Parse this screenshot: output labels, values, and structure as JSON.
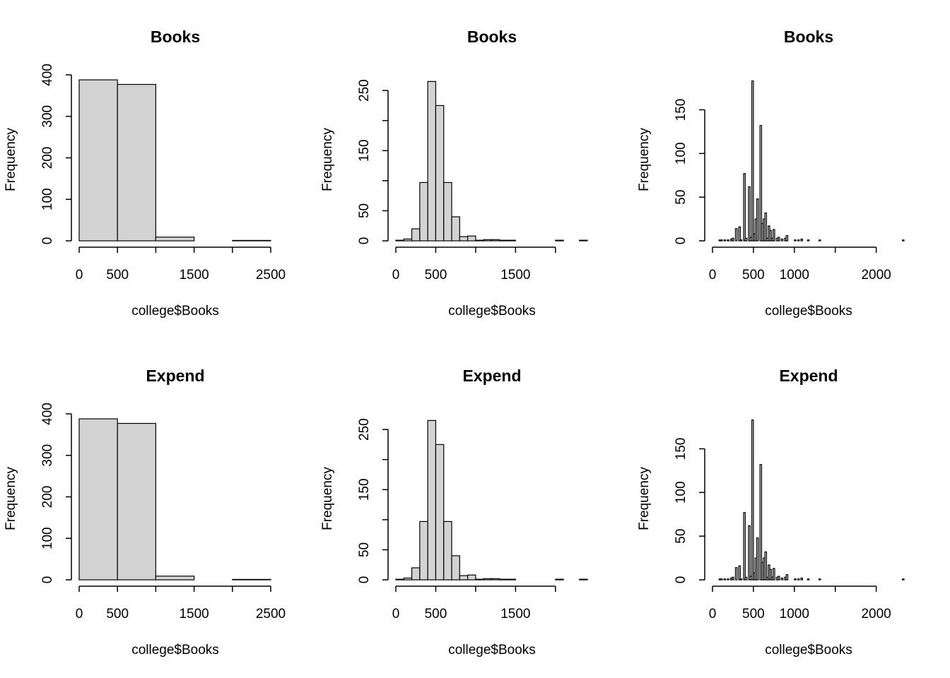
{
  "chart_data": [
    {
      "type": "histogram",
      "title": "Books",
      "x_label": "college$Books",
      "y_label": "Frequency",
      "color": "#d3d3d3",
      "bins": [
        0,
        500,
        1000,
        1500,
        2000,
        2500
      ],
      "values": [
        388,
        377,
        9,
        0,
        1
      ],
      "xlim": [
        0,
        2500
      ],
      "xticks": [
        0,
        500,
        {
          "value": 1000,
          "label": null
        },
        1500,
        {
          "value": 2000,
          "label": null
        },
        2500
      ],
      "ylim": [
        0,
        400
      ],
      "yticks": [
        0,
        100,
        200,
        300,
        400
      ]
    },
    {
      "type": "histogram",
      "title": "Books",
      "x_label": "college$Books",
      "y_label": "Frequency",
      "color": "#d3d3d3",
      "bins": [
        0,
        100,
        200,
        300,
        400,
        500,
        600,
        700,
        800,
        900,
        1000,
        1100,
        1200,
        1300,
        1400,
        1500,
        1600,
        1700,
        1800,
        1900,
        2000,
        2100,
        2200,
        2300,
        2400
      ],
      "values": [
        1,
        3,
        20,
        97,
        265,
        225,
        97,
        40,
        7,
        8,
        1,
        2,
        2,
        1,
        1,
        0,
        0,
        0,
        0,
        0,
        1,
        0,
        0,
        1
      ],
      "xlim": [
        0,
        2400
      ],
      "xticks": [
        0,
        500,
        {
          "value": 1000,
          "label": null
        },
        1500,
        {
          "value": 2000,
          "label": null
        }
      ],
      "ylim": [
        0,
        276
      ],
      "yticks": [
        0,
        50,
        {
          "value": 100,
          "label": null
        },
        150,
        {
          "value": 200,
          "label": null
        },
        250
      ]
    },
    {
      "type": "histogram",
      "title": "Books",
      "x_label": "college$Books",
      "y_label": "Frequency",
      "color": "#d3d3d3",
      "bins": [
        0,
        20,
        40,
        60,
        80,
        100,
        120,
        140,
        160,
        180,
        200,
        220,
        240,
        260,
        280,
        300,
        320,
        340,
        360,
        380,
        400,
        420,
        440,
        460,
        480,
        500,
        520,
        540,
        560,
        580,
        600,
        620,
        640,
        660,
        680,
        700,
        720,
        740,
        760,
        780,
        800,
        820,
        840,
        860,
        880,
        900,
        920,
        940,
        960,
        980,
        1000,
        1020,
        1040,
        1060,
        1080,
        1100,
        1120,
        1140,
        1160,
        1180,
        1200,
        1220,
        1240,
        1260,
        1280,
        1300,
        1320,
        1340,
        1360,
        1380,
        1400,
        1420,
        1440,
        1460,
        1480,
        1500,
        1520,
        1540,
        1560,
        1580,
        1600,
        1620,
        1640,
        1660,
        1680,
        1700,
        1720,
        1740,
        1760,
        1780,
        1800,
        1820,
        1840,
        1860,
        1880,
        1900,
        1920,
        1940,
        1960,
        1980,
        2000,
        2020,
        2040,
        2060,
        2080,
        2100,
        2120,
        2140,
        2160,
        2180,
        2200,
        2220,
        2240,
        2260,
        2280,
        2300,
        2320,
        2340
      ],
      "values": [
        0,
        0,
        0,
        0,
        1,
        1,
        0,
        1,
        0,
        1,
        0,
        2,
        3,
        0,
        14,
        0,
        16,
        1,
        0,
        77,
        3,
        0,
        62,
        4,
        183,
        8,
        25,
        48,
        0,
        132,
        20,
        25,
        32,
        3,
        17,
        12,
        3,
        13,
        0,
        3,
        4,
        0,
        2,
        0,
        3,
        6,
        0,
        0,
        0,
        0,
        1,
        0,
        1,
        0,
        2,
        0,
        0,
        0,
        1,
        0,
        0,
        0,
        0,
        0,
        0,
        1,
        0,
        0,
        0,
        0,
        0,
        0,
        0,
        0,
        0,
        0,
        0,
        0,
        0,
        0,
        0,
        0,
        0,
        0,
        0,
        0,
        0,
        0,
        0,
        0,
        0,
        0,
        0,
        0,
        0,
        0,
        0,
        0,
        0,
        0,
        0,
        0,
        0,
        0,
        0,
        0,
        0,
        0,
        0,
        0,
        0,
        0,
        0,
        0,
        0,
        0,
        1
      ],
      "xlim": [
        0,
        2340
      ],
      "xticks": [
        0,
        500,
        1000,
        {
          "value": 1500,
          "label": null
        },
        2000
      ],
      "ylim": [
        0,
        190
      ],
      "yticks": [
        0,
        50,
        100,
        150
      ]
    },
    {
      "type": "histogram",
      "title": "Expend",
      "x_label": "college$Books",
      "y_label": "Frequency",
      "color": "#d3d3d3",
      "bins": [
        0,
        500,
        1000,
        1500,
        2000,
        2500
      ],
      "values": [
        388,
        377,
        9,
        0,
        1
      ],
      "xlim": [
        0,
        2500
      ],
      "xticks": [
        0,
        500,
        {
          "value": 1000,
          "label": null
        },
        1500,
        {
          "value": 2000,
          "label": null
        },
        2500
      ],
      "ylim": [
        0,
        400
      ],
      "yticks": [
        0,
        100,
        200,
        300,
        400
      ]
    },
    {
      "type": "histogram",
      "title": "Expend",
      "x_label": "college$Books",
      "y_label": "Frequency",
      "color": "#d3d3d3",
      "bins": [
        0,
        100,
        200,
        300,
        400,
        500,
        600,
        700,
        800,
        900,
        1000,
        1100,
        1200,
        1300,
        1400,
        1500,
        1600,
        1700,
        1800,
        1900,
        2000,
        2100,
        2200,
        2300,
        2400
      ],
      "values": [
        1,
        3,
        20,
        97,
        265,
        225,
        97,
        40,
        7,
        8,
        1,
        2,
        2,
        1,
        1,
        0,
        0,
        0,
        0,
        0,
        1,
        0,
        0,
        1
      ],
      "xlim": [
        0,
        2400
      ],
      "xticks": [
        0,
        500,
        {
          "value": 1000,
          "label": null
        },
        1500,
        {
          "value": 2000,
          "label": null
        }
      ],
      "ylim": [
        0,
        276
      ],
      "yticks": [
        0,
        50,
        {
          "value": 100,
          "label": null
        },
        150,
        {
          "value": 200,
          "label": null
        },
        250
      ]
    },
    {
      "type": "histogram",
      "title": "Expend",
      "x_label": "college$Books",
      "y_label": "Frequency",
      "color": "#d3d3d3",
      "bins": [
        0,
        20,
        40,
        60,
        80,
        100,
        120,
        140,
        160,
        180,
        200,
        220,
        240,
        260,
        280,
        300,
        320,
        340,
        360,
        380,
        400,
        420,
        440,
        460,
        480,
        500,
        520,
        540,
        560,
        580,
        600,
        620,
        640,
        660,
        680,
        700,
        720,
        740,
        760,
        780,
        800,
        820,
        840,
        860,
        880,
        900,
        920,
        940,
        960,
        980,
        1000,
        1020,
        1040,
        1060,
        1080,
        1100,
        1120,
        1140,
        1160,
        1180,
        1200,
        1220,
        1240,
        1260,
        1280,
        1300,
        1320,
        1340,
        1360,
        1380,
        1400,
        1420,
        1440,
        1460,
        1480,
        1500,
        1520,
        1540,
        1560,
        1580,
        1600,
        1620,
        1640,
        1660,
        1680,
        1700,
        1720,
        1740,
        1760,
        1780,
        1800,
        1820,
        1840,
        1860,
        1880,
        1900,
        1920,
        1940,
        1960,
        1980,
        2000,
        2020,
        2040,
        2060,
        2080,
        2100,
        2120,
        2140,
        2160,
        2180,
        2200,
        2220,
        2240,
        2260,
        2280,
        2300,
        2320,
        2340
      ],
      "values": [
        0,
        0,
        0,
        0,
        1,
        1,
        0,
        1,
        0,
        1,
        0,
        2,
        3,
        0,
        14,
        0,
        16,
        1,
        0,
        77,
        3,
        0,
        62,
        4,
        183,
        8,
        25,
        48,
        0,
        132,
        20,
        25,
        32,
        3,
        17,
        12,
        3,
        13,
        0,
        3,
        4,
        0,
        2,
        0,
        3,
        6,
        0,
        0,
        0,
        0,
        1,
        0,
        1,
        0,
        2,
        0,
        0,
        0,
        1,
        0,
        0,
        0,
        0,
        0,
        0,
        1,
        0,
        0,
        0,
        0,
        0,
        0,
        0,
        0,
        0,
        0,
        0,
        0,
        0,
        0,
        0,
        0,
        0,
        0,
        0,
        0,
        0,
        0,
        0,
        0,
        0,
        0,
        0,
        0,
        0,
        0,
        0,
        0,
        0,
        0,
        0,
        0,
        0,
        0,
        0,
        0,
        0,
        0,
        0,
        0,
        0,
        0,
        0,
        0,
        0,
        0,
        1
      ],
      "xlim": [
        0,
        2340
      ],
      "xticks": [
        0,
        500,
        1000,
        {
          "value": 1500,
          "label": null
        },
        2000
      ],
      "ylim": [
        0,
        190
      ],
      "yticks": [
        0,
        50,
        100,
        150
      ]
    }
  ]
}
